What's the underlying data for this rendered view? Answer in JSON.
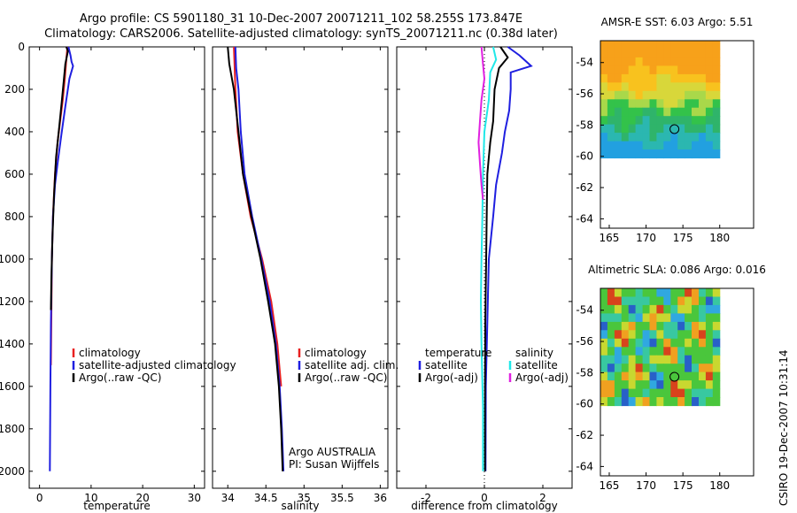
{
  "title": {
    "line1": "Argo profile: CS 5901180_31 10-Dec-2007 20071211_102 58.255S 173.847E",
    "line2": "Climatology: CARS2006. Satellite-adjusted climatology: synTS_20071211.nc (0.38d later)"
  },
  "watermark": "CSIRO 19-Dec-2007 10:31:14",
  "colors": {
    "climatology": "#e82020",
    "satellite": "#1f1fe0",
    "argo": "#000000",
    "cyan": "#20e8e8",
    "magenta": "#e020e0"
  },
  "panels": [
    {
      "id": "temperature",
      "xlabel": "temperature",
      "xlim": [
        -2,
        32
      ],
      "xticks": [
        "0",
        "10",
        "20",
        "30"
      ],
      "xtick_values": [
        0,
        10,
        20,
        30
      ],
      "legend": {
        "items": [
          {
            "label": "climatology",
            "color": "#e82020"
          },
          {
            "label": "satellite-adjusted climatology",
            "color": "#1f1fe0"
          },
          {
            "label": "Argo(..raw -QC)",
            "color": "#000000"
          }
        ]
      }
    },
    {
      "id": "salinity",
      "xlabel": "salinity",
      "xlim": [
        33.8,
        36.1
      ],
      "xticks": [
        "34",
        "34.5",
        "35",
        "35.5",
        "36"
      ],
      "xtick_values": [
        34,
        34.5,
        35,
        35.5,
        36
      ],
      "legend": {
        "items": [
          {
            "label": "climatology",
            "color": "#e82020"
          },
          {
            "label": "satellite adj. clim.",
            "color": "#1f1fe0"
          },
          {
            "label": "Argo(..raw -QC)",
            "color": "#000000"
          }
        ]
      },
      "note": [
        "Argo AUSTRALIA",
        "PI: Susan Wijffels"
      ]
    },
    {
      "id": "difference",
      "xlabel": "difference from climatology",
      "xlim": [
        -3.0,
        3.0
      ],
      "xticks": [
        "-2",
        "0",
        "2"
      ],
      "xtick_values": [
        -2,
        0,
        2
      ],
      "legend": {
        "temperature_header": "temperature",
        "salinity_header": "salinity",
        "temperature_items": [
          {
            "label": "satellite",
            "color": "#1f1fe0"
          },
          {
            "label": "Argo(-adj)",
            "color": "#000000"
          }
        ],
        "salinity_items": [
          {
            "label": "satellite",
            "color": "#20e8e8"
          },
          {
            "label": "Argo(-adj)",
            "color": "#e020e0"
          }
        ]
      }
    }
  ],
  "yaxis": {
    "ylim": [
      0,
      2080
    ],
    "reversed": true,
    "ticks": [
      "0",
      "200",
      "400",
      "600",
      "800",
      "1000",
      "1200",
      "1400",
      "1600",
      "1800",
      "2000"
    ],
    "tick_values": [
      0,
      200,
      400,
      600,
      800,
      1000,
      1200,
      1400,
      1600,
      1800,
      2000
    ]
  },
  "maps": [
    {
      "id": "sst",
      "title": "AMSR-E SST: 6.03 Argo: 5.51",
      "xticks": [
        "165",
        "170",
        "175",
        "180"
      ],
      "yticks": [
        "-54",
        "-56",
        "-58",
        "-60",
        "-62",
        "-64"
      ],
      "profile_location": {
        "lon": 173.85,
        "lat": -58.26
      }
    },
    {
      "id": "sla",
      "title": "Altimetric SLA: 0.086 Argo: 0.016",
      "xticks": [
        "165",
        "170",
        "175",
        "180"
      ],
      "yticks": [
        "-54",
        "-56",
        "-58",
        "-60",
        "-62",
        "-64"
      ],
      "profile_location": {
        "lon": 173.85,
        "lat": -58.26
      }
    }
  ],
  "chart_data": [
    {
      "type": "line",
      "panel": "temperature",
      "xlabel": "temperature",
      "ylabel": "",
      "ylim": [
        2080,
        0
      ],
      "series": [
        {
          "name": "climatology",
          "color": "#e82020",
          "points": [
            [
              5.4,
              0
            ],
            [
              5.2,
              60
            ],
            [
              4.9,
              150
            ],
            [
              4.5,
              250
            ],
            [
              4.0,
              350
            ],
            [
              3.5,
              450
            ],
            [
              3.0,
              600
            ],
            [
              2.6,
              800
            ],
            [
              2.4,
              1000
            ],
            [
              2.2,
              1500
            ]
          ]
        },
        {
          "name": "satellite-adjusted climatology",
          "color": "#1f1fe0",
          "points": [
            [
              5.6,
              0
            ],
            [
              6.0,
              40
            ],
            [
              6.2,
              70
            ],
            [
              6.5,
              90
            ],
            [
              5.8,
              150
            ],
            [
              5.0,
              280
            ],
            [
              4.2,
              420
            ],
            [
              3.5,
              550
            ],
            [
              3.0,
              650
            ],
            [
              2.6,
              800
            ],
            [
              2.4,
              1000
            ],
            [
              2.2,
              1300
            ],
            [
              2.1,
              1600
            ],
            [
              2.0,
              2000
            ]
          ]
        },
        {
          "name": "Argo(..raw -QC)",
          "color": "#000000",
          "points": [
            [
              5.2,
              0
            ],
            [
              5.5,
              20
            ],
            [
              5.0,
              80
            ],
            [
              4.7,
              160
            ],
            [
              4.3,
              260
            ],
            [
              3.8,
              380
            ],
            [
              3.2,
              520
            ],
            [
              2.8,
              700
            ],
            [
              2.5,
              900
            ],
            [
              2.3,
              1100
            ],
            [
              2.2,
              1240
            ]
          ]
        }
      ]
    },
    {
      "type": "line",
      "panel": "salinity",
      "xlabel": "salinity",
      "ylabel": "",
      "ylim": [
        2080,
        0
      ],
      "series": [
        {
          "name": "climatology",
          "color": "#e82020",
          "points": [
            [
              34.08,
              0
            ],
            [
              34.09,
              100
            ],
            [
              34.1,
              200
            ],
            [
              34.13,
              400
            ],
            [
              34.2,
              600
            ],
            [
              34.3,
              800
            ],
            [
              34.45,
              1000
            ],
            [
              34.57,
              1200
            ],
            [
              34.65,
              1400
            ],
            [
              34.7,
              1600
            ]
          ]
        },
        {
          "name": "satellite adj. clim.",
          "color": "#1f1fe0",
          "points": [
            [
              34.1,
              0
            ],
            [
              34.11,
              100
            ],
            [
              34.14,
              200
            ],
            [
              34.17,
              400
            ],
            [
              34.22,
              600
            ],
            [
              34.32,
              800
            ],
            [
              34.44,
              1000
            ],
            [
              34.55,
              1200
            ],
            [
              34.63,
              1400
            ],
            [
              34.68,
              1600
            ],
            [
              34.71,
              1800
            ],
            [
              34.73,
              2000
            ]
          ]
        },
        {
          "name": "Argo(..raw -QC)",
          "color": "#000000",
          "points": [
            [
              34.0,
              0
            ],
            [
              34.02,
              80
            ],
            [
              34.08,
              200
            ],
            [
              34.14,
              400
            ],
            [
              34.2,
              600
            ],
            [
              34.31,
              800
            ],
            [
              34.43,
              1000
            ],
            [
              34.53,
              1200
            ],
            [
              34.62,
              1400
            ],
            [
              34.67,
              1600
            ],
            [
              34.7,
              1800
            ],
            [
              34.72,
              2000
            ]
          ]
        }
      ]
    },
    {
      "type": "line",
      "panel": "difference",
      "xlabel": "difference from climatology",
      "ylabel": "",
      "ylim": [
        2080,
        0
      ],
      "series": [
        {
          "name": "temperature satellite",
          "color": "#1f1fe0",
          "points": [
            [
              0.8,
              0
            ],
            [
              1.2,
              40
            ],
            [
              1.6,
              90
            ],
            [
              0.9,
              120
            ],
            [
              0.9,
              200
            ],
            [
              0.85,
              300
            ],
            [
              0.7,
              400
            ],
            [
              0.6,
              500
            ],
            [
              0.4,
              650
            ],
            [
              0.3,
              800
            ],
            [
              0.15,
              1000
            ],
            [
              0.1,
              1300
            ],
            [
              0.05,
              1600
            ],
            [
              0.04,
              2000
            ]
          ]
        },
        {
          "name": "temperature Argo(-adj)",
          "color": "#000000",
          "points": [
            [
              0.55,
              0
            ],
            [
              0.8,
              50
            ],
            [
              0.5,
              100
            ],
            [
              0.35,
              200
            ],
            [
              0.3,
              350
            ],
            [
              0.2,
              450
            ],
            [
              0.15,
              520
            ],
            [
              0.1,
              600
            ],
            [
              0.08,
              800
            ],
            [
              0.06,
              1000
            ],
            [
              0.03,
              1300
            ],
            [
              0.02,
              1600
            ],
            [
              0.02,
              2000
            ]
          ]
        },
        {
          "name": "salinity satellite",
          "color": "#20e8e8",
          "points": [
            [
              0.3,
              0
            ],
            [
              0.4,
              60
            ],
            [
              0.2,
              120
            ],
            [
              0.15,
              250
            ],
            [
              0.0,
              400
            ],
            [
              -0.05,
              600
            ],
            [
              -0.07,
              800
            ],
            [
              -0.1,
              1000
            ],
            [
              -0.12,
              1200
            ],
            [
              -0.1,
              1400
            ],
            [
              -0.05,
              1700
            ],
            [
              -0.05,
              2000
            ]
          ]
        },
        {
          "name": "salinity Argo(-adj)",
          "color": "#e020e0",
          "points": [
            [
              -0.1,
              0
            ],
            [
              -0.05,
              80
            ],
            [
              0.0,
              150
            ],
            [
              -0.1,
              250
            ],
            [
              -0.15,
              350
            ],
            [
              -0.2,
              450
            ],
            [
              -0.15,
              550
            ],
            [
              -0.1,
              650
            ],
            [
              -0.05,
              720
            ]
          ]
        }
      ]
    }
  ]
}
